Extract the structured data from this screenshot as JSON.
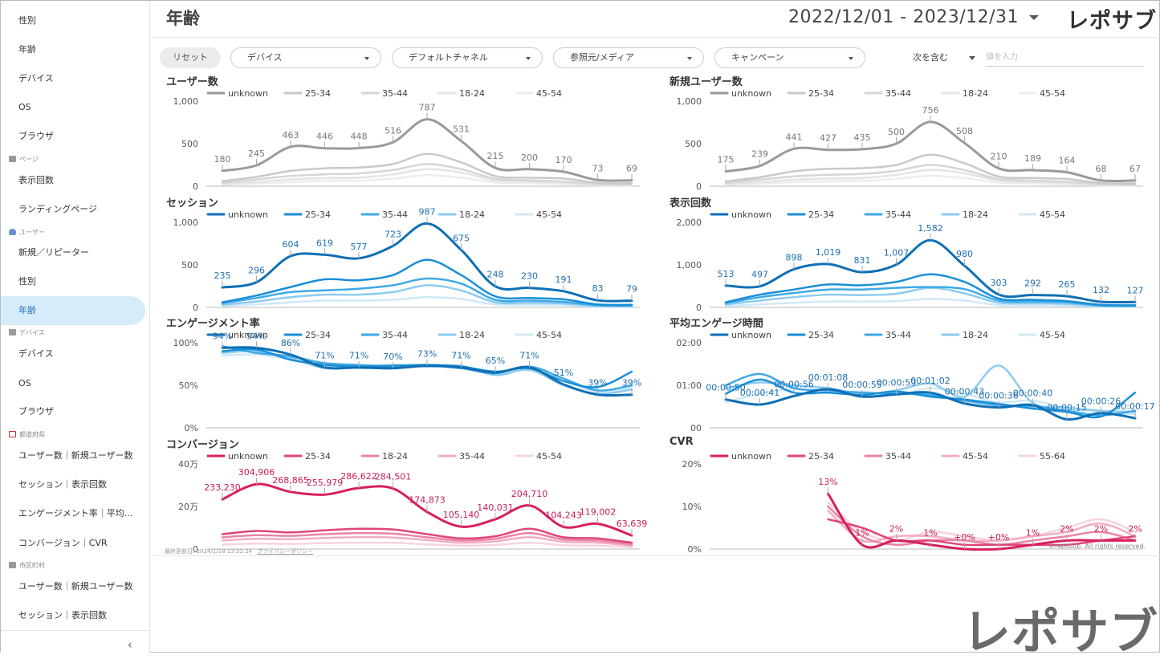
{
  "sidebar": {
    "items": [
      {
        "label": "性別",
        "y": 7
      },
      {
        "label": "年齢",
        "y": 43
      },
      {
        "label": "デバイス",
        "y": 79
      },
      {
        "label": "OS",
        "y": 115
      },
      {
        "label": "ブラウザ",
        "y": 151
      },
      {
        "label": "表示回数",
        "y": 206
      },
      {
        "label": "ランディングページ",
        "y": 242
      },
      {
        "label": "新規／リピーター",
        "y": 296
      },
      {
        "label": "性別",
        "y": 332
      },
      {
        "label": "年齢",
        "y": 368,
        "active": true
      },
      {
        "label": "デバイス",
        "y": 422
      },
      {
        "label": "OS",
        "y": 459
      },
      {
        "label": "ブラウザ",
        "y": 494
      },
      {
        "label": "ユーザー数｜新規ユーザー数",
        "y": 549
      },
      {
        "label": "セッション｜表示回数",
        "y": 585
      },
      {
        "label": "エンゲージメント率｜平均...",
        "y": 621
      },
      {
        "label": "コンバージョン｜CVR",
        "y": 658
      },
      {
        "label": "ユーザー数｜新規ユーザー数",
        "y": 712
      },
      {
        "label": "セッション｜表示回数",
        "y": 748
      }
    ],
    "sections": [
      {
        "label": "ページ",
        "y": 192,
        "icon": "page"
      },
      {
        "label": "ユーザー",
        "y": 283,
        "icon": "user"
      },
      {
        "label": "デバイス",
        "y": 408,
        "icon": "device"
      },
      {
        "label": "都道府県",
        "y": 535,
        "icon": "flag"
      },
      {
        "label": "市区町村",
        "y": 698,
        "icon": "city"
      }
    ],
    "collapse_glyph": "‹"
  },
  "header": {
    "title": "年齢",
    "date_range": "2022/12/01 - 2023/12/31",
    "logo": "レポサブ"
  },
  "filters": {
    "reset": "リセット",
    "device": "デバイス",
    "channel": "デフォルトチャネル",
    "source": "参照元/メディア",
    "campaign": "キャンペーン",
    "contains": "次を含む",
    "value_placeholder": "値を入力"
  },
  "footer": {
    "updated": "最終更新日: 2024/1/18 13:52:24",
    "privacy": "プライバシーポリシー",
    "copyright": "©reposub. All rights reserved.",
    "logo": "レポサブ"
  },
  "chart_data": [
    {
      "id": "users",
      "title": "ユーザー数",
      "type": "line",
      "palette": "gray",
      "legend": [
        "unknown",
        "25-34",
        "35-44",
        "18-24",
        "45-54"
      ],
      "yticks": [
        "0",
        "500",
        "1,000"
      ],
      "ymax": 1000,
      "series": [
        {
          "name": "unknown",
          "values": [
            180,
            245,
            463,
            446,
            448,
            516,
            787,
            531,
            215,
            200,
            170,
            73,
            69
          ]
        },
        {
          "name": "25-34",
          "values": [
            60,
            110,
            180,
            210,
            220,
            260,
            380,
            280,
            120,
            100,
            90,
            40,
            35
          ]
        },
        {
          "name": "35-44",
          "values": [
            40,
            80,
            120,
            140,
            150,
            190,
            260,
            200,
            90,
            70,
            55,
            25,
            20
          ]
        },
        {
          "name": "18-24",
          "values": [
            25,
            50,
            80,
            95,
            100,
            140,
            200,
            160,
            70,
            55,
            40,
            15,
            12
          ]
        },
        {
          "name": "45-54",
          "values": [
            15,
            30,
            50,
            60,
            65,
            90,
            130,
            100,
            45,
            35,
            25,
            10,
            8
          ]
        }
      ],
      "labels": [
        "180",
        "245",
        "463",
        "446",
        "448",
        "516",
        "787",
        "531",
        "215",
        "200",
        "170",
        "73",
        "69"
      ]
    },
    {
      "id": "new_users",
      "title": "新規ユーザー数",
      "type": "line",
      "palette": "gray",
      "legend": [
        "unknown",
        "25-34",
        "35-44",
        "18-24",
        "45-54"
      ],
      "yticks": [
        "0",
        "500",
        "1,000"
      ],
      "ymax": 1000,
      "series": [
        {
          "name": "unknown",
          "values": [
            175,
            239,
            441,
            427,
            435,
            500,
            756,
            508,
            210,
            189,
            164,
            68,
            67
          ]
        },
        {
          "name": "25-34",
          "values": [
            58,
            105,
            175,
            205,
            212,
            250,
            370,
            270,
            115,
            96,
            85,
            38,
            33
          ]
        },
        {
          "name": "35-44",
          "values": [
            38,
            76,
            115,
            135,
            145,
            182,
            250,
            190,
            86,
            66,
            52,
            24,
            19
          ]
        },
        {
          "name": "18-24",
          "values": [
            24,
            48,
            76,
            90,
            96,
            134,
            192,
            152,
            66,
            52,
            38,
            14,
            11
          ]
        },
        {
          "name": "45-54",
          "values": [
            14,
            28,
            48,
            57,
            62,
            86,
            124,
            96,
            42,
            33,
            23,
            9,
            7
          ]
        }
      ],
      "labels": [
        "175",
        "239",
        "441",
        "427",
        "435",
        "500",
        "756",
        "508",
        "210",
        "189",
        "164",
        "68",
        "67"
      ]
    },
    {
      "id": "sessions",
      "title": "セッション",
      "type": "line",
      "palette": "blue",
      "legend": [
        "unknown",
        "25-34",
        "35-44",
        "18-24",
        "45-54"
      ],
      "yticks": [
        "0",
        "500",
        "1,000"
      ],
      "ymax": 1000,
      "series": [
        {
          "name": "unknown",
          "values": [
            235,
            296,
            604,
            619,
            577,
            723,
            987,
            675,
            248,
            230,
            191,
            83,
            79
          ]
        },
        {
          "name": "25-34",
          "values": [
            60,
            140,
            240,
            330,
            320,
            380,
            560,
            380,
            130,
            110,
            95,
            35,
            30
          ]
        },
        {
          "name": "35-44",
          "values": [
            50,
            110,
            180,
            200,
            220,
            260,
            340,
            280,
            90,
            80,
            65,
            25,
            20
          ]
        },
        {
          "name": "18-24",
          "values": [
            30,
            70,
            120,
            150,
            150,
            180,
            260,
            200,
            60,
            55,
            45,
            15,
            14
          ]
        },
        {
          "name": "45-54",
          "values": [
            15,
            35,
            60,
            80,
            80,
            90,
            120,
            100,
            35,
            30,
            25,
            8,
            6
          ]
        }
      ],
      "labels": [
        "235",
        "296",
        "604",
        "619",
        "577",
        "723",
        "987",
        "675",
        "248",
        "230",
        "191",
        "83",
        "79"
      ]
    },
    {
      "id": "pageviews",
      "title": "表示回数",
      "type": "line",
      "palette": "blue",
      "legend": [
        "unknown",
        "25-34",
        "35-44",
        "18-24",
        "45-54"
      ],
      "yticks": [
        "0",
        "1,000",
        "2,000"
      ],
      "ymax": 2000,
      "series": [
        {
          "name": "unknown",
          "values": [
            513,
            497,
            898,
            1019,
            831,
            1007,
            1582,
            980,
            303,
            292,
            265,
            132,
            127
          ]
        },
        {
          "name": "25-34",
          "values": [
            120,
            300,
            420,
            540,
            520,
            600,
            780,
            600,
            210,
            180,
            150,
            60,
            50
          ]
        },
        {
          "name": "35-44",
          "values": [
            100,
            240,
            340,
            420,
            420,
            460,
            480,
            430,
            160,
            140,
            120,
            45,
            40
          ]
        },
        {
          "name": "18-24",
          "values": [
            70,
            160,
            240,
            300,
            290,
            320,
            460,
            330,
            110,
            100,
            85,
            30,
            26
          ]
        },
        {
          "name": "45-54",
          "values": [
            30,
            70,
            110,
            140,
            140,
            150,
            200,
            160,
            55,
            50,
            42,
            15,
            12
          ]
        }
      ],
      "labels": [
        "513",
        "497",
        "898",
        "1,019",
        "831",
        "1,007",
        "1,582",
        "980",
        "303",
        "292",
        "265",
        "132",
        "127"
      ]
    },
    {
      "id": "engagement",
      "title": "エンゲージメント率",
      "type": "line",
      "palette": "blue",
      "legend": [
        "unknown",
        "25-34",
        "35-44",
        "18-24",
        "45-54"
      ],
      "yticks": [
        "0%",
        "50%",
        "100%"
      ],
      "ymax": 100,
      "series": [
        {
          "name": "unknown",
          "values": [
            94,
            94,
            86,
            71,
            71,
            70,
            73,
            71,
            65,
            71,
            51,
            39,
            39
          ]
        },
        {
          "name": "25-34",
          "values": [
            90,
            92,
            80,
            74,
            72,
            73,
            74,
            72,
            66,
            70,
            55,
            48,
            66
          ]
        },
        {
          "name": "35-44",
          "values": [
            96,
            88,
            84,
            76,
            74,
            72,
            73,
            70,
            64,
            72,
            58,
            44,
            50
          ]
        },
        {
          "name": "18-24",
          "values": [
            88,
            90,
            82,
            70,
            72,
            74,
            72,
            73,
            62,
            68,
            50,
            40,
            45
          ]
        },
        {
          "name": "45-54",
          "values": [
            85,
            86,
            80,
            72,
            70,
            71,
            72,
            70,
            66,
            69,
            56,
            42,
            48
          ]
        }
      ],
      "labels": [
        "94%",
        "94%",
        "86%",
        "71%",
        "71%",
        "70%",
        "73%",
        "71%",
        "65%",
        "71%",
        "51%",
        "39%",
        "39%"
      ]
    },
    {
      "id": "avg_engagement_time",
      "title": "平均エンゲージ時間",
      "type": "line",
      "palette": "blue",
      "legend": [
        "unknown",
        "25-34",
        "35-44",
        "18-24",
        "45-54"
      ],
      "yticks": [
        "00",
        "01:00",
        "02:00"
      ],
      "ymax": 150,
      "series": [
        {
          "name": "unknown",
          "values": [
            50,
            41,
            56,
            68,
            55,
            59,
            62,
            43,
            36,
            40,
            15,
            26,
            17
          ]
        },
        {
          "name": "25-34",
          "values": [
            60,
            85,
            62,
            62,
            58,
            64,
            55,
            50,
            42,
            34,
            28,
            20,
            62
          ]
        },
        {
          "name": "35-44",
          "values": [
            75,
            95,
            70,
            66,
            62,
            60,
            58,
            48,
            40,
            38,
            30,
            22,
            30
          ]
        },
        {
          "name": "18-24",
          "values": [
            70,
            80,
            75,
            70,
            60,
            66,
            78,
            55,
            110,
            44,
            36,
            30,
            28
          ]
        },
        {
          "name": "45-54",
          "values": [
            45,
            60,
            68,
            62,
            64,
            58,
            70,
            60,
            45,
            48,
            34,
            28,
            24
          ]
        }
      ],
      "labels": [
        "00:00:50",
        "00:00:41",
        "00:00:56",
        "00:01:08",
        "00:00:55",
        "00:00:59",
        "00:01:02",
        "00:00:43",
        "00:00:36",
        "00:00:40",
        "00:00:15",
        "00:00:26",
        "00:00:17"
      ]
    },
    {
      "id": "conversions",
      "title": "コンバージョン",
      "type": "line",
      "palette": "pink",
      "legend": [
        "unknown",
        "25-34",
        "18-24",
        "35-44",
        "45-54"
      ],
      "yticks": [
        "0",
        "20万",
        "40万"
      ],
      "ymax": 400000,
      "series": [
        {
          "name": "unknown",
          "values": [
            233230,
            304906,
            268865,
            255979,
            286622,
            284501,
            174873,
            105140,
            140031,
            204710,
            104243,
            119002,
            63639
          ]
        },
        {
          "name": "25-34",
          "values": [
            70000,
            85000,
            78000,
            88000,
            95000,
            92000,
            70000,
            50000,
            60000,
            95000,
            55000,
            50000,
            30000
          ]
        },
        {
          "name": "18-24",
          "values": [
            55000,
            65000,
            62000,
            70000,
            75000,
            72000,
            55000,
            40000,
            48000,
            75000,
            45000,
            40000,
            22000
          ]
        },
        {
          "name": "35-44",
          "values": [
            40000,
            48000,
            46000,
            52000,
            56000,
            54000,
            42000,
            30000,
            36000,
            56000,
            34000,
            30000,
            16000
          ]
        },
        {
          "name": "45-54",
          "values": [
            20000,
            26000,
            24000,
            28000,
            30000,
            29000,
            22000,
            16000,
            19000,
            30000,
            18000,
            16000,
            9000
          ]
        }
      ],
      "labels": [
        "233,230",
        "304,906",
        "268,865",
        "255,979",
        "286,622",
        "284,501",
        "174,873",
        "105,140",
        "140,031",
        "204,710",
        "104,243",
        "119,002",
        "63,639"
      ]
    },
    {
      "id": "cvr",
      "title": "CVR",
      "type": "line",
      "palette": "pink",
      "legend": [
        "unknown",
        "25-34",
        "35-44",
        "45-54",
        "55-64"
      ],
      "yticks": [
        "0%",
        "10%",
        "20%"
      ],
      "ymax": 20,
      "start_index": 3,
      "series": [
        {
          "name": "unknown",
          "values": [
            null,
            null,
            null,
            13,
            1,
            2,
            1,
            0,
            0,
            1,
            2,
            2,
            2
          ]
        },
        {
          "name": "25-34",
          "values": [
            null,
            null,
            null,
            7,
            5,
            2,
            2,
            1,
            1,
            1,
            1,
            2,
            3
          ]
        },
        {
          "name": "35-44",
          "values": [
            null,
            null,
            null,
            10,
            3,
            1,
            2,
            2,
            1,
            2,
            3,
            4,
            2
          ]
        },
        {
          "name": "45-54",
          "values": [
            null,
            null,
            null,
            9,
            2,
            3,
            3,
            2,
            2,
            3,
            4,
            6,
            3
          ]
        },
        {
          "name": "55-64",
          "values": [
            null,
            null,
            null,
            11,
            4,
            2,
            4,
            3,
            2,
            3,
            5,
            7,
            4
          ]
        }
      ],
      "labels": [
        null,
        null,
        null,
        "13%",
        "1%",
        "2%",
        "1%",
        "+0%",
        "+0%",
        "1%",
        "2%",
        "2%",
        "2%"
      ]
    }
  ]
}
